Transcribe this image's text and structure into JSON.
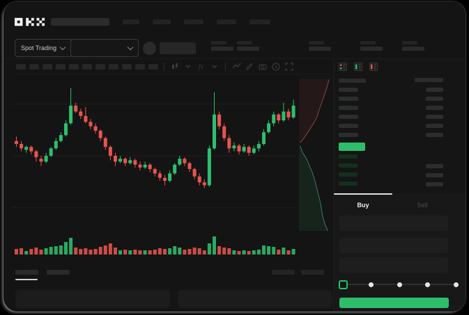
{
  "app": {
    "brand": "OKX"
  },
  "colors": {
    "green": "#2ebd6b",
    "red": "#e8544e",
    "surface": "#141414",
    "skeleton": "#262626"
  },
  "nav": {
    "logo": "OKX",
    "item_count": 5,
    "has_search_block": true
  },
  "ticker_bar": {
    "market_selector": {
      "label": "Spot Trading"
    },
    "pair_selector": {
      "label": ""
    },
    "coin_icon": "coin-avatar",
    "stat_group_count": 5
  },
  "chart_toolbar": {
    "block_count": 11,
    "icons": [
      "candle-style-icon",
      "chevron-down-icon",
      "indicators-icon",
      "chevron-down-icon",
      "line-tool-icon",
      "draw-tool-icon",
      "camera-icon",
      "clock-icon",
      "expand-icon"
    ]
  },
  "chart_data": {
    "type": "candlestick",
    "title": "",
    "price_scale_visible": false,
    "ylim": [
      0,
      100
    ],
    "grid": "horizontal-faint",
    "candles": [
      [
        60,
        58,
        63,
        56
      ],
      [
        58,
        55,
        60,
        53
      ],
      [
        54,
        56,
        57,
        52
      ],
      [
        56,
        53,
        57,
        51
      ],
      [
        53,
        49,
        54,
        46
      ],
      [
        48,
        46,
        50,
        43
      ],
      [
        46,
        50,
        52,
        45
      ],
      [
        50,
        55,
        56,
        49
      ],
      [
        55,
        60,
        62,
        54
      ],
      [
        60,
        64,
        66,
        59
      ],
      [
        64,
        72,
        74,
        63
      ],
      [
        72,
        84,
        96,
        71
      ],
      [
        84,
        80,
        86,
        79
      ],
      [
        80,
        77,
        82,
        75
      ],
      [
        77,
        73,
        83,
        72
      ],
      [
        73,
        70,
        75,
        68
      ],
      [
        70,
        67,
        72,
        65
      ],
      [
        67,
        62,
        68,
        60
      ],
      [
        62,
        56,
        63,
        54
      ],
      [
        56,
        50,
        57,
        47
      ],
      [
        50,
        46,
        52,
        43
      ],
      [
        46,
        48,
        50,
        45
      ],
      [
        48,
        45,
        49,
        43
      ],
      [
        45,
        47,
        49,
        44
      ],
      [
        47,
        44,
        48,
        42
      ],
      [
        44,
        42,
        46,
        40
      ],
      [
        42,
        44,
        46,
        41
      ],
      [
        44,
        41,
        45,
        39
      ],
      [
        41,
        38,
        42,
        36
      ],
      [
        38,
        35,
        40,
        33
      ],
      [
        35,
        33,
        37,
        30
      ],
      [
        33,
        38,
        40,
        32
      ],
      [
        38,
        44,
        45,
        37
      ],
      [
        44,
        48,
        50,
        43
      ],
      [
        48,
        45,
        49,
        43
      ],
      [
        45,
        41,
        46,
        39
      ],
      [
        41,
        36,
        42,
        34
      ],
      [
        36,
        32,
        38,
        30
      ],
      [
        32,
        30,
        34,
        28
      ],
      [
        30,
        55,
        57,
        29
      ],
      [
        55,
        78,
        93,
        54
      ],
      [
        78,
        70,
        80,
        68
      ],
      [
        70,
        62,
        72,
        60
      ],
      [
        62,
        55,
        64,
        52
      ],
      [
        55,
        57,
        59,
        53
      ],
      [
        57,
        53,
        58,
        51
      ],
      [
        53,
        56,
        58,
        52
      ],
      [
        56,
        52,
        57,
        50
      ],
      [
        52,
        55,
        57,
        51
      ],
      [
        55,
        58,
        60,
        53
      ],
      [
        58,
        66,
        68,
        57
      ],
      [
        66,
        72,
        74,
        65
      ],
      [
        72,
        78,
        80,
        70
      ],
      [
        78,
        74,
        79,
        72
      ],
      [
        74,
        80,
        86,
        73
      ],
      [
        80,
        76,
        82,
        74
      ],
      [
        76,
        84,
        88,
        75
      ]
    ],
    "volumes": [
      8,
      9,
      5,
      8,
      10,
      7,
      9,
      11,
      12,
      13,
      18,
      24,
      10,
      8,
      9,
      7,
      8,
      11,
      13,
      16,
      10,
      6,
      7,
      6,
      7,
      6,
      6,
      6,
      7,
      9,
      8,
      9,
      12,
      10,
      7,
      8,
      10,
      9,
      6,
      16,
      26,
      12,
      10,
      9,
      6,
      5,
      6,
      5,
      6,
      7,
      13,
      12,
      11,
      7,
      10,
      6,
      8
    ],
    "depth": {
      "sell_curve": [
        [
          0.92,
          0
        ],
        [
          0.86,
          0.05
        ],
        [
          0.78,
          0.1
        ],
        [
          0.7,
          0.15
        ],
        [
          0.62,
          0.2
        ],
        [
          0.55,
          0.25
        ],
        [
          0.42,
          0.3
        ],
        [
          0.3,
          0.34
        ],
        [
          0.18,
          0.38
        ],
        [
          0.04,
          0.42
        ]
      ],
      "buy_curve": [
        [
          0.04,
          0.44
        ],
        [
          0.1,
          0.48
        ],
        [
          0.22,
          0.52
        ],
        [
          0.32,
          0.57
        ],
        [
          0.42,
          0.62
        ],
        [
          0.5,
          0.68
        ],
        [
          0.58,
          0.75
        ],
        [
          0.66,
          0.82
        ],
        [
          0.72,
          0.9
        ],
        [
          0.8,
          0.96
        ],
        [
          0.88,
          1.0
        ]
      ]
    }
  },
  "order_book": {
    "view_toggles": [
      "orderbook-combined-icon",
      "orderbook-bids-icon",
      "orderbook-asks-icon"
    ],
    "sell_rows": 6,
    "sell_rows_right": [
      1,
      1,
      1,
      1,
      1,
      1
    ],
    "buy_rows": 4,
    "buy_rows_right": [
      0,
      1,
      1,
      1
    ],
    "price_pill_color": "#2ebd6b"
  },
  "trade_panel": {
    "tabs": [
      {
        "label": "Buy",
        "active": true
      },
      {
        "label": "Sell",
        "active": false
      }
    ],
    "input_count": 3,
    "slider": {
      "stops": 5,
      "selected_index": 0
    },
    "submit_color": "#2ebd6b"
  },
  "bottom_bar": {
    "tab_count": 2,
    "active_tab": 0,
    "right_button_count": 2,
    "box_count": 2
  }
}
